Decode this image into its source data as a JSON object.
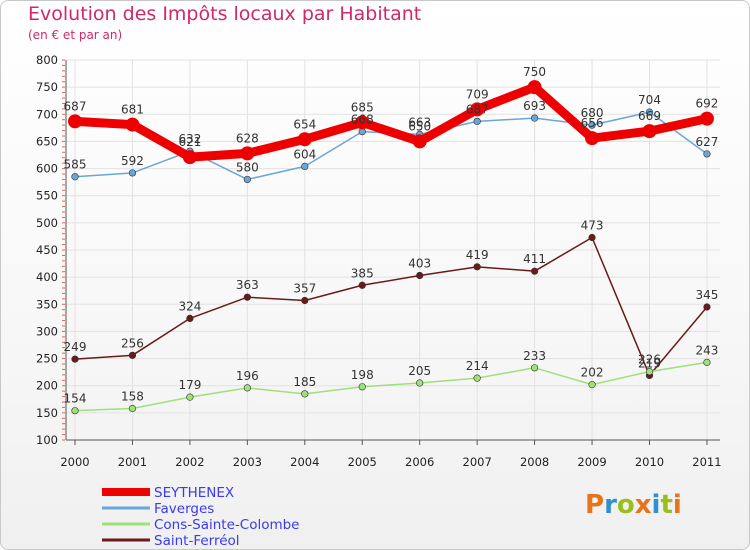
{
  "title": "Evolution des Impôts locaux par Habitant",
  "subtitle": "(en € et par an)",
  "logo": {
    "text": "Proxiti",
    "letter_colors": [
      "#e8731a",
      "#2f8fd1",
      "#9bbf1a",
      "#e8731a",
      "#2f8fd1",
      "#9bbf1a",
      "#e8731a"
    ]
  },
  "chart_data": {
    "type": "line",
    "title": "Evolution des Impôts locaux par Habitant",
    "subtitle": "(en € et par an)",
    "xlabel": "",
    "ylabel": "",
    "ylim": [
      100,
      800
    ],
    "yticks": [
      100,
      150,
      200,
      250,
      300,
      350,
      400,
      450,
      500,
      550,
      600,
      650,
      700,
      750,
      800
    ],
    "grid": true,
    "legend_position": "bottom-left",
    "x": [
      "2000",
      "2001",
      "2002",
      "2003",
      "2004",
      "2005",
      "2006",
      "2007",
      "2008",
      "2009",
      "2010",
      "2011"
    ],
    "series": [
      {
        "name": "Saint-Ferréol",
        "color": "#6b1a1a",
        "emphasis": false,
        "values": [
          249,
          256,
          324,
          363,
          357,
          385,
          403,
          419,
          411,
          473,
          219,
          345
        ]
      },
      {
        "name": "Cons-Sainte-Colombe",
        "color": "#9fe07a",
        "emphasis": false,
        "values": [
          154,
          158,
          179,
          196,
          185,
          198,
          205,
          214,
          233,
          202,
          226,
          243
        ]
      },
      {
        "name": "Faverges",
        "color": "#6aa6d8",
        "emphasis": false,
        "values": [
          585,
          592,
          632,
          580,
          604,
          668,
          663,
          687,
          693,
          680,
          704,
          627
        ]
      },
      {
        "name": "SEYTHENEX",
        "color": "#ee0000",
        "emphasis": true,
        "values": [
          687,
          681,
          621,
          628,
          654,
          685,
          650,
          709,
          750,
          656,
          669,
          692
        ]
      }
    ],
    "legend_order": [
      "SEYTHENEX",
      "Faverges",
      "Cons-Sainte-Colombe",
      "Saint-Ferréol"
    ]
  }
}
